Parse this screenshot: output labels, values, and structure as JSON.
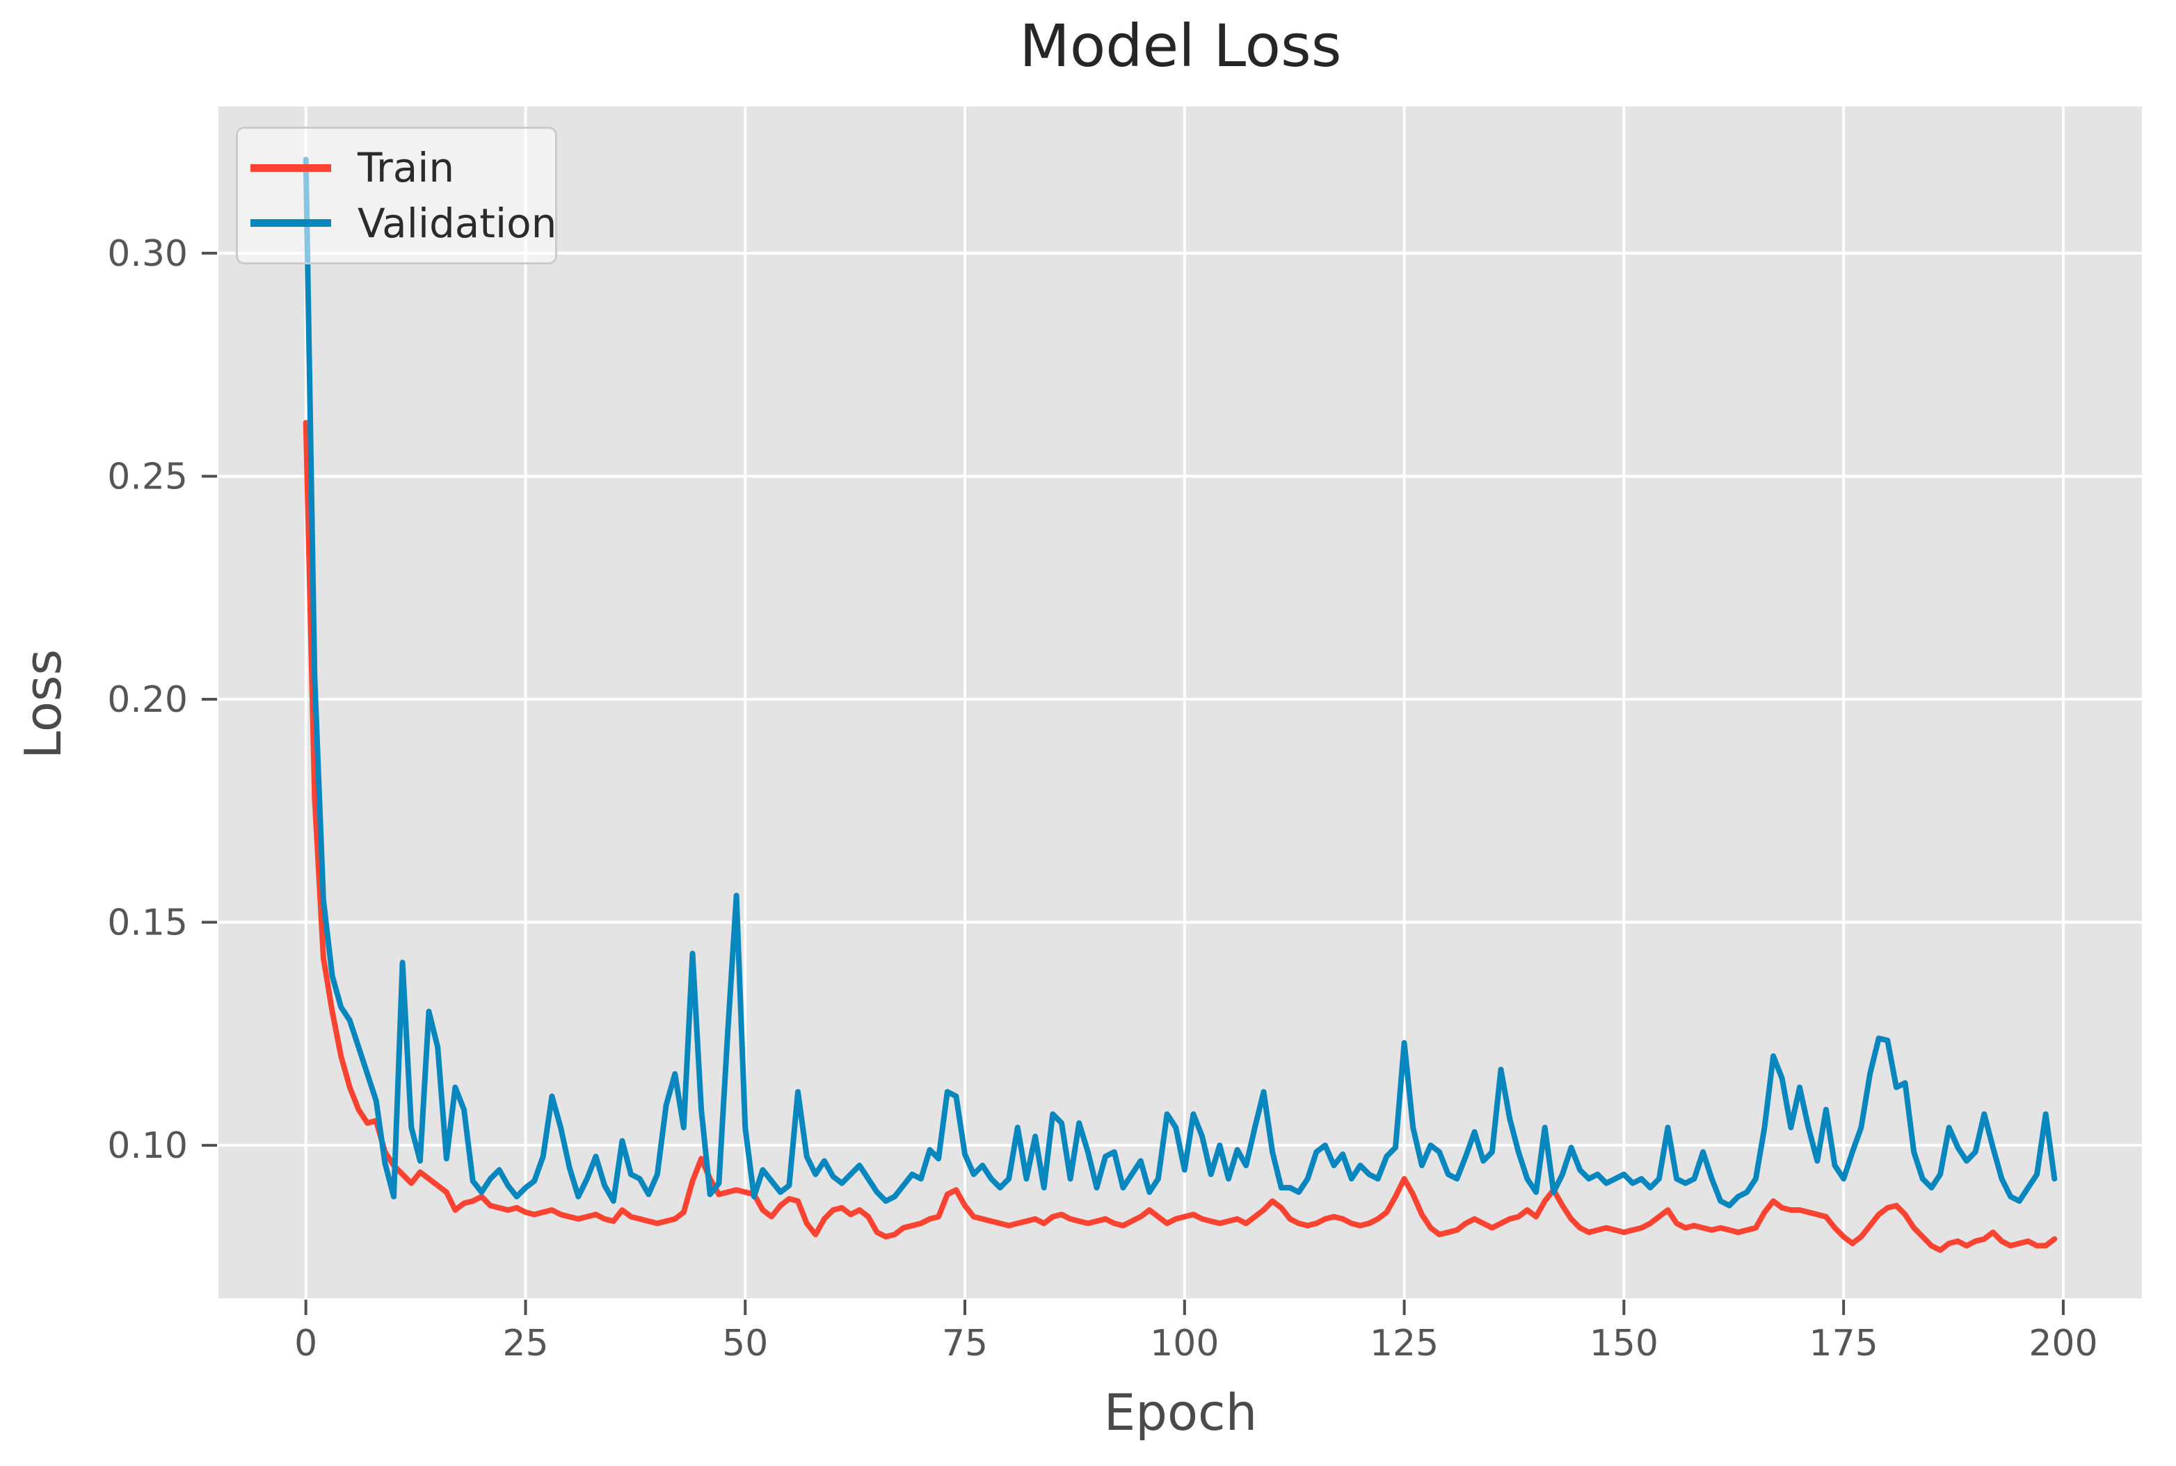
{
  "figure": {
    "title": "Model Loss",
    "xlabel": "Epoch",
    "ylabel": "Loss"
  },
  "colors": {
    "figure_bg": "#ffffff",
    "plot_bg": "#e5e4e4",
    "grid": "#ffffff",
    "tick_mark": "#4f4f4f",
    "tick_label": "#555555",
    "title_text": "#262626",
    "axis_label_text": "#4a4a4a",
    "train_line": "#fb4332",
    "validation_line": "#0887be"
  },
  "legend": {
    "items": [
      {
        "label": "Train",
        "color": "#fb4332"
      },
      {
        "label": "Validation",
        "color": "#0887be"
      }
    ]
  },
  "chart_data": {
    "type": "line",
    "title": "Model Loss",
    "xlabel": "Epoch",
    "ylabel": "Loss",
    "legend_position": "upper left",
    "grid": true,
    "xlim": [
      -9.95,
      208.95
    ],
    "ylim": [
      0.0657,
      0.3329
    ],
    "x_ticks": [
      0,
      25,
      50,
      75,
      100,
      125,
      150,
      175,
      200
    ],
    "x_tick_labels": [
      "0",
      "25",
      "50",
      "75",
      "100",
      "125",
      "150",
      "175",
      "200"
    ],
    "y_ticks": [
      0.1,
      0.15,
      0.2,
      0.25,
      0.3
    ],
    "y_tick_labels": [
      "0.10",
      "0.15",
      "0.20",
      "0.25",
      "0.30"
    ],
    "x_start": 0,
    "x_step": 1,
    "series": [
      {
        "name": "Train",
        "color": "#fb4332",
        "values": [
          0.262,
          0.178,
          0.142,
          0.13,
          0.12,
          0.113,
          0.108,
          0.105,
          0.1055,
          0.0985,
          0.0955,
          0.0935,
          0.0915,
          0.094,
          0.0925,
          0.091,
          0.0895,
          0.0855,
          0.087,
          0.0875,
          0.0885,
          0.0865,
          0.086,
          0.0855,
          0.086,
          0.085,
          0.0845,
          0.085,
          0.0855,
          0.0845,
          0.084,
          0.0835,
          0.084,
          0.0845,
          0.0835,
          0.083,
          0.0855,
          0.084,
          0.0835,
          0.083,
          0.0825,
          0.083,
          0.0835,
          0.085,
          0.092,
          0.097,
          0.0925,
          0.089,
          0.0895,
          0.09,
          0.0895,
          0.089,
          0.0855,
          0.084,
          0.0865,
          0.088,
          0.0875,
          0.0825,
          0.08,
          0.0835,
          0.0855,
          0.086,
          0.0845,
          0.0855,
          0.084,
          0.0805,
          0.0795,
          0.08,
          0.0815,
          0.082,
          0.0825,
          0.0835,
          0.084,
          0.089,
          0.09,
          0.0865,
          0.084,
          0.0835,
          0.083,
          0.0825,
          0.082,
          0.0825,
          0.083,
          0.0835,
          0.0825,
          0.084,
          0.0845,
          0.0835,
          0.083,
          0.0825,
          0.083,
          0.0835,
          0.0825,
          0.082,
          0.083,
          0.084,
          0.0855,
          0.084,
          0.0825,
          0.0835,
          0.084,
          0.0845,
          0.0835,
          0.083,
          0.0825,
          0.083,
          0.0835,
          0.0825,
          0.084,
          0.0855,
          0.0875,
          0.086,
          0.0835,
          0.0825,
          0.082,
          0.0825,
          0.0835,
          0.084,
          0.0835,
          0.0825,
          0.082,
          0.0825,
          0.0835,
          0.085,
          0.0885,
          0.0925,
          0.089,
          0.0845,
          0.0815,
          0.08,
          0.0805,
          0.081,
          0.0825,
          0.0835,
          0.0825,
          0.0815,
          0.0825,
          0.0835,
          0.084,
          0.0855,
          0.084,
          0.0875,
          0.09,
          0.0865,
          0.0835,
          0.0815,
          0.0805,
          0.081,
          0.0815,
          0.081,
          0.0805,
          0.081,
          0.0815,
          0.0825,
          0.084,
          0.0855,
          0.0825,
          0.0815,
          0.082,
          0.0815,
          0.081,
          0.0815,
          0.081,
          0.0805,
          0.081,
          0.0815,
          0.085,
          0.0875,
          0.086,
          0.0855,
          0.0855,
          0.085,
          0.0845,
          0.084,
          0.0815,
          0.0795,
          0.078,
          0.0795,
          0.082,
          0.0845,
          0.086,
          0.0865,
          0.0845,
          0.0815,
          0.0795,
          0.0775,
          0.0765,
          0.078,
          0.0785,
          0.0775,
          0.0785,
          0.079,
          0.0805,
          0.0785,
          0.0775,
          0.078,
          0.0785,
          0.0775,
          0.0775,
          0.079
        ]
      },
      {
        "name": "Validation",
        "color": "#0887be",
        "values": [
          0.321,
          0.205,
          0.155,
          0.138,
          0.131,
          0.128,
          0.122,
          0.116,
          0.11,
          0.096,
          0.0885,
          0.141,
          0.104,
          0.0965,
          0.13,
          0.122,
          0.097,
          0.113,
          0.108,
          0.092,
          0.0895,
          0.0925,
          0.0945,
          0.091,
          0.0885,
          0.0905,
          0.092,
          0.0975,
          0.111,
          0.104,
          0.095,
          0.0885,
          0.0925,
          0.0975,
          0.091,
          0.0875,
          0.101,
          0.0935,
          0.0925,
          0.089,
          0.0935,
          0.109,
          0.116,
          0.104,
          0.143,
          0.108,
          0.089,
          0.0915,
          0.125,
          0.156,
          0.104,
          0.0885,
          0.0945,
          0.092,
          0.0895,
          0.091,
          0.112,
          0.0975,
          0.0935,
          0.0965,
          0.093,
          0.0915,
          0.0935,
          0.0955,
          0.0925,
          0.0895,
          0.0875,
          0.0885,
          0.091,
          0.0935,
          0.0925,
          0.099,
          0.097,
          0.112,
          0.111,
          0.098,
          0.0935,
          0.0955,
          0.0925,
          0.0905,
          0.0925,
          0.104,
          0.0925,
          0.102,
          0.0905,
          0.107,
          0.105,
          0.0925,
          0.105,
          0.0985,
          0.0905,
          0.0975,
          0.0985,
          0.0905,
          0.0935,
          0.0965,
          0.0895,
          0.0925,
          0.107,
          0.104,
          0.0945,
          0.107,
          0.102,
          0.0935,
          0.1,
          0.0925,
          0.099,
          0.0955,
          0.104,
          0.112,
          0.0985,
          0.0905,
          0.0905,
          0.0895,
          0.0925,
          0.0985,
          0.1,
          0.0955,
          0.098,
          0.0925,
          0.0955,
          0.0935,
          0.0925,
          0.0975,
          0.0995,
          0.123,
          0.104,
          0.0955,
          0.1,
          0.0985,
          0.0935,
          0.0925,
          0.0975,
          0.103,
          0.0965,
          0.0985,
          0.117,
          0.106,
          0.0985,
          0.0925,
          0.0895,
          0.104,
          0.0895,
          0.0935,
          0.0995,
          0.0945,
          0.0925,
          0.0935,
          0.0915,
          0.0925,
          0.0935,
          0.0915,
          0.0925,
          0.0905,
          0.0925,
          0.104,
          0.0925,
          0.0915,
          0.0925,
          0.0985,
          0.0925,
          0.0875,
          0.0865,
          0.0885,
          0.0895,
          0.0925,
          0.104,
          0.12,
          0.115,
          0.104,
          0.113,
          0.104,
          0.0965,
          0.108,
          0.0955,
          0.0925,
          0.0985,
          0.104,
          0.116,
          0.124,
          0.1235,
          0.113,
          0.114,
          0.0985,
          0.0925,
          0.0905,
          0.0935,
          0.104,
          0.0995,
          0.0965,
          0.0985,
          0.107,
          0.0995,
          0.0925,
          0.0885,
          0.0875,
          0.0905,
          0.0935,
          0.107,
          0.0925
        ]
      }
    ]
  }
}
